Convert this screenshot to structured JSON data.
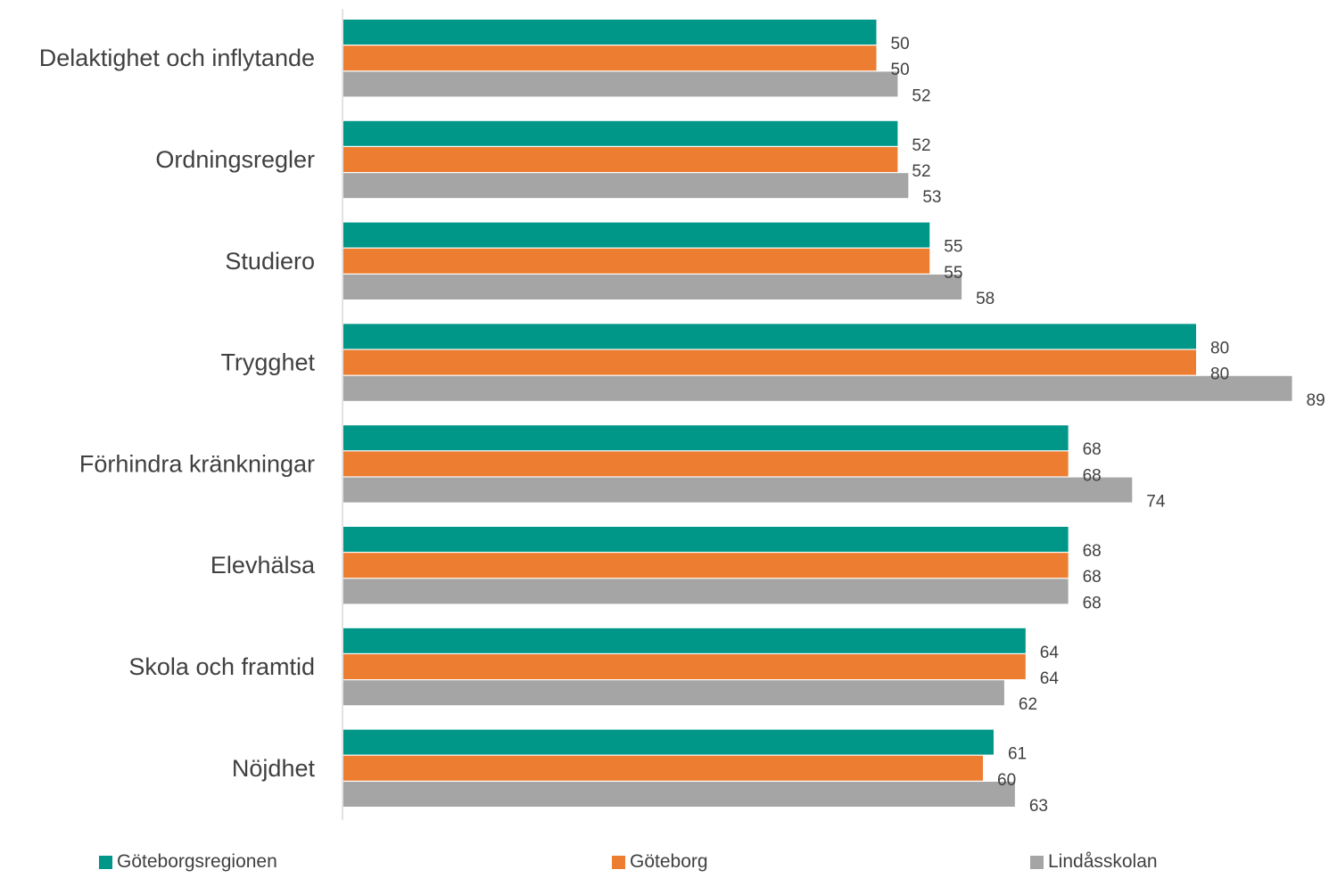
{
  "chart_data": {
    "type": "bar",
    "orientation": "horizontal",
    "categories": [
      "Delaktighet och inflytande",
      "Ordningsregler",
      "Studiero",
      "Trygghet",
      "Förhindra kränkningar",
      "Elevhälsa",
      "Skola och framtid",
      "Nöjdhet"
    ],
    "series": [
      {
        "name": "Göteborgsregionen",
        "color": "#009688",
        "values": [
          50,
          52,
          55,
          80,
          68,
          68,
          64,
          61
        ]
      },
      {
        "name": "Göteborg",
        "color": "#ED7D31",
        "values": [
          50,
          52,
          55,
          80,
          68,
          68,
          64,
          60
        ]
      },
      {
        "name": "Lindåsskolan",
        "color": "#A5A5A5",
        "values": [
          52,
          53,
          58,
          89,
          74,
          68,
          62,
          63
        ]
      }
    ],
    "title": "",
    "xlabel": "",
    "ylabel": "",
    "xlim": [
      0,
      89
    ],
    "grid": false,
    "data_labels": true,
    "legend_position": "bottom"
  }
}
